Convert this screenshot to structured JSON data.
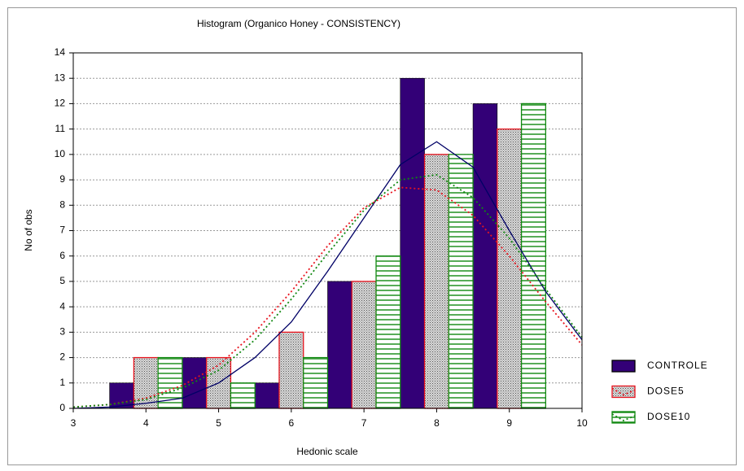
{
  "chart_data": {
    "type": "bar",
    "title": "Histogram (Organico Honey - CONSISTENCY)",
    "x_label": "Hedonic scale",
    "y_label": "No of obs",
    "x": [
      4,
      5,
      6,
      7,
      8,
      9
    ],
    "series": [
      {
        "name": "CONTROLE",
        "color": "#330077",
        "fill": "solid",
        "values": [
          1,
          2,
          1,
          5,
          13,
          12
        ]
      },
      {
        "name": "DOSE5",
        "color": "#e8141e",
        "fill": "dots",
        "values": [
          2,
          2,
          3,
          5,
          10,
          11
        ]
      },
      {
        "name": "DOSE10",
        "color": "#118811",
        "fill": "hlines",
        "values": [
          2,
          1,
          2,
          6,
          10,
          12
        ]
      }
    ],
    "curves": {
      "x": [
        3,
        3.5,
        4,
        4.5,
        5,
        5.5,
        6,
        6.5,
        7,
        7.5,
        8,
        8.5,
        9,
        9.5,
        10
      ],
      "series": [
        {
          "color": "#000066",
          "dash": "solid",
          "values": [
            0,
            0.05,
            0.2,
            0.4,
            1.0,
            2.0,
            3.4,
            5.4,
            7.5,
            9.6,
            10.5,
            9.5,
            7,
            4.6,
            2.7
          ]
        },
        {
          "color": "#e8141e",
          "dash": "dotted",
          "values": [
            0.05,
            0.15,
            0.4,
            0.9,
            1.7,
            3,
            4.6,
            6.4,
            7.9,
            8.7,
            8.6,
            7.6,
            6,
            4.2,
            2.5
          ]
        },
        {
          "color": "#118811",
          "dash": "dotted",
          "values": [
            0.05,
            0.15,
            0.35,
            0.8,
            1.5,
            2.7,
            4.3,
            6.1,
            7.8,
            9,
            9.2,
            8.3,
            6.7,
            4.7,
            2.8
          ]
        }
      ]
    },
    "xlim": [
      3,
      10
    ],
    "xticks": [
      3,
      4,
      5,
      6,
      7,
      8,
      9,
      10
    ],
    "ylim": [
      0,
      14
    ],
    "yticks": [
      0,
      1,
      2,
      3,
      4,
      5,
      6,
      7,
      8,
      9,
      10,
      11,
      12,
      13,
      14
    ],
    "grid": true,
    "legend": "right"
  }
}
